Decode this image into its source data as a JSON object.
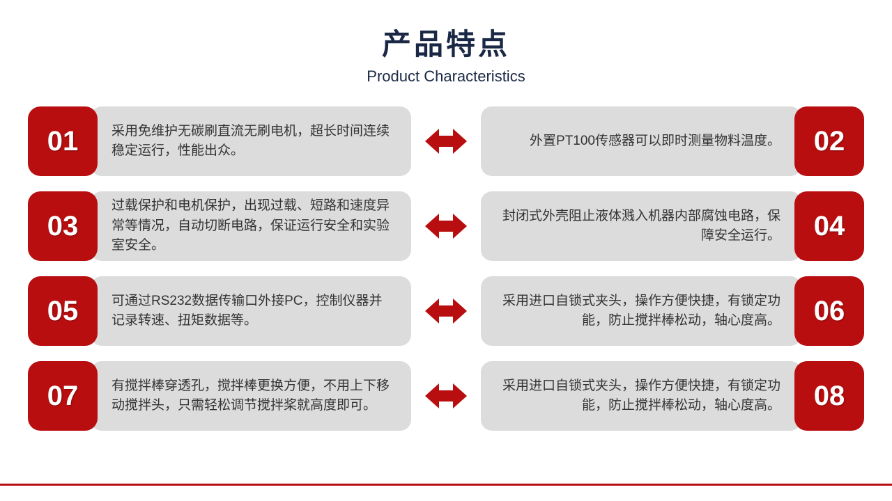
{
  "colors": {
    "badge_bg": "#b90e10",
    "badge_text": "#ffffff",
    "text_box_bg": "#dcdcdc",
    "text_color": "#333333",
    "title_color": "#1a2845",
    "arrow_color": "#b90e10",
    "line_color": "#b90e10",
    "page_bg": "#ffffff"
  },
  "header": {
    "title_cn": "产品特点",
    "title_en": "Product Characteristics"
  },
  "features": [
    {
      "left_num": "01",
      "left_text": "采用免维护无碳刷直流无刷电机，超长时间连续稳定运行，性能出众。",
      "right_num": "02",
      "right_text": "外置PT100传感器可以即时测量物料温度。"
    },
    {
      "left_num": "03",
      "left_text": "过载保护和电机保护，出现过载、短路和速度异常等情况，自动切断电路，保证运行安全和实验室安全。",
      "right_num": "04",
      "right_text": "封闭式外壳阻止液体溅入机器内部腐蚀电路，保障安全运行。"
    },
    {
      "left_num": "05",
      "left_text": "可通过RS232数据传输口外接PC，控制仪器并记录转速、扭矩数据等。",
      "right_num": "06",
      "right_text": "采用进口自锁式夹头，操作方便快捷，有锁定功能，防止搅拌棒松动，轴心度高。"
    },
    {
      "left_num": "07",
      "left_text": "有搅拌棒穿透孔，搅拌棒更换方便，不用上下移动搅拌头，只需轻松调节搅拌桨就高度即可。",
      "right_num": "08",
      "right_text": "采用进口自锁式夹头，操作方便快捷，有锁定功能，防止搅拌棒松动，轴心度高。"
    }
  ]
}
